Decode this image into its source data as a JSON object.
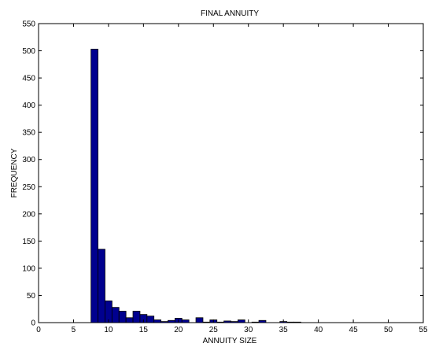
{
  "chart_data": {
    "type": "bar",
    "title": "FINAL ANNUITY",
    "xlabel": "ANNUITY SIZE",
    "ylabel": "FREQUENCY",
    "xlim": [
      0,
      55
    ],
    "ylim": [
      0,
      550
    ],
    "xticks": [
      0,
      5,
      10,
      15,
      20,
      25,
      30,
      35,
      40,
      45,
      50,
      55
    ],
    "yticks": [
      0,
      50,
      100,
      150,
      200,
      250,
      300,
      350,
      400,
      450,
      500,
      550
    ],
    "grid": false,
    "bar_color": "#00008f",
    "bin_width": 1,
    "bins": [
      {
        "x0": 7.5,
        "value": 503
      },
      {
        "x0": 8.5,
        "value": 135
      },
      {
        "x0": 9.5,
        "value": 40
      },
      {
        "x0": 10.5,
        "value": 28
      },
      {
        "x0": 11.5,
        "value": 21
      },
      {
        "x0": 12.5,
        "value": 9
      },
      {
        "x0": 13.5,
        "value": 21
      },
      {
        "x0": 14.5,
        "value": 15
      },
      {
        "x0": 15.5,
        "value": 12
      },
      {
        "x0": 16.5,
        "value": 5
      },
      {
        "x0": 17.5,
        "value": 2
      },
      {
        "x0": 18.5,
        "value": 4
      },
      {
        "x0": 19.5,
        "value": 8
      },
      {
        "x0": 20.5,
        "value": 5
      },
      {
        "x0": 21.5,
        "value": 0
      },
      {
        "x0": 22.5,
        "value": 9
      },
      {
        "x0": 23.5,
        "value": 1
      },
      {
        "x0": 24.5,
        "value": 5
      },
      {
        "x0": 25.5,
        "value": 1
      },
      {
        "x0": 26.5,
        "value": 3
      },
      {
        "x0": 27.5,
        "value": 2
      },
      {
        "x0": 28.5,
        "value": 5
      },
      {
        "x0": 29.5,
        "value": 0
      },
      {
        "x0": 30.5,
        "value": 1
      },
      {
        "x0": 31.5,
        "value": 4
      },
      {
        "x0": 32.5,
        "value": 0
      },
      {
        "x0": 33.5,
        "value": 0
      },
      {
        "x0": 34.5,
        "value": 2
      },
      {
        "x0": 35.5,
        "value": 1
      },
      {
        "x0": 36.5,
        "value": 1
      }
    ]
  }
}
